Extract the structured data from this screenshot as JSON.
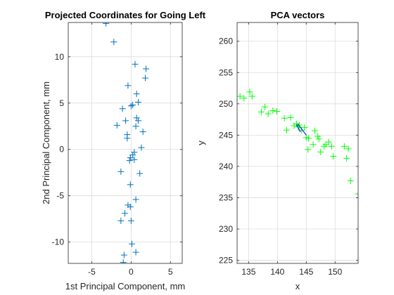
{
  "chart_data": [
    {
      "type": "scatter",
      "title": "Projected Coordinates for Going Left",
      "xlabel": "1st Principal Component, mm",
      "ylabel": "2nd Principal Component, mm",
      "xlim": [
        -8,
        6.5
      ],
      "ylim": [
        -12.3,
        13.7
      ],
      "xticks": [
        -5,
        0,
        5
      ],
      "yticks": [
        -10,
        -5,
        0,
        5,
        10
      ],
      "grid": true,
      "marker": "+",
      "marker_color": "#0072bd",
      "points": [
        [
          -3.2,
          13.6
        ],
        [
          -2.2,
          11.6
        ],
        [
          0.5,
          9.2
        ],
        [
          1.9,
          8.7
        ],
        [
          1.8,
          7.7
        ],
        [
          -0.4,
          6.9
        ],
        [
          0.7,
          6.0
        ],
        [
          0.9,
          5.1
        ],
        [
          0.2,
          4.8
        ],
        [
          0.0,
          4.7
        ],
        [
          -1.1,
          4.4
        ],
        [
          0.7,
          3.4
        ],
        [
          -0.7,
          3.1
        ],
        [
          0.9,
          3.1
        ],
        [
          -1.8,
          2.6
        ],
        [
          0.6,
          2.5
        ],
        [
          1.5,
          1.9
        ],
        [
          -0.5,
          1.6
        ],
        [
          -0.5,
          1.2
        ],
        [
          1.3,
          0.2
        ],
        [
          0.4,
          -0.3
        ],
        [
          0.2,
          -0.6
        ],
        [
          -0.1,
          -0.9
        ],
        [
          0.4,
          -1.1
        ],
        [
          -0.2,
          -1.2
        ],
        [
          1.1,
          -2.6
        ],
        [
          -1.3,
          -2.4
        ],
        [
          -0.1,
          -3.8
        ],
        [
          0.6,
          -5.4
        ],
        [
          -0.4,
          -6.0
        ],
        [
          -0.1,
          -6.2
        ],
        [
          -0.8,
          -6.9
        ],
        [
          -1.3,
          -7.7
        ],
        [
          0.0,
          -7.7
        ],
        [
          0.1,
          -10.2
        ],
        [
          0.6,
          -11.1
        ],
        [
          -0.9,
          -11.4
        ],
        [
          -1.0,
          -12.2
        ]
      ]
    },
    {
      "type": "scatter",
      "title": "PCA vectors",
      "xlabel": "x",
      "ylabel": "y",
      "xlim": [
        133,
        154
      ],
      "ylim": [
        224.5,
        263
      ],
      "xticks": [
        135,
        140,
        145,
        150
      ],
      "yticks": [
        225,
        230,
        235,
        240,
        245,
        250,
        255,
        260
      ],
      "grid": true,
      "marker": "+",
      "marker_color": "#00ff00",
      "vector_color": "#0000ff",
      "points": [
        [
          133.5,
          251.2
        ],
        [
          134.2,
          250.9
        ],
        [
          135.2,
          251.9
        ],
        [
          135.6,
          251.2
        ],
        [
          137.2,
          248.7
        ],
        [
          137.8,
          249.5
        ],
        [
          138.4,
          248.4
        ],
        [
          139.2,
          248.9
        ],
        [
          139.9,
          248.8
        ],
        [
          141.2,
          247.7
        ],
        [
          141.6,
          245.8
        ],
        [
          142.3,
          247.8
        ],
        [
          142.9,
          246.5
        ],
        [
          143.3,
          246.8
        ],
        [
          143.6,
          246.3
        ],
        [
          143.8,
          246.6
        ],
        [
          144.2,
          245.8
        ],
        [
          144.7,
          246.2
        ],
        [
          145.0,
          244.6
        ],
        [
          145.4,
          244.5
        ],
        [
          145.3,
          242.7
        ],
        [
          146.2,
          243.5
        ],
        [
          146.5,
          245.7
        ],
        [
          147.0,
          244.8
        ],
        [
          147.2,
          244.4
        ],
        [
          147.5,
          242.3
        ],
        [
          148.1,
          243.2
        ],
        [
          148.4,
          243.5
        ],
        [
          148.9,
          243.9
        ],
        [
          149.4,
          243.2
        ],
        [
          149.7,
          241.6
        ],
        [
          151.6,
          243.2
        ],
        [
          152.0,
          241.3
        ],
        [
          152.3,
          242.8
        ],
        [
          152.7,
          237.7
        ],
        [
          154.0,
          235.6
        ]
      ],
      "vectors": [
        [
          [
            143.5,
            246.8
          ],
          [
            145.0,
            245.0
          ]
        ],
        [
          [
            144.0,
            245.5
          ],
          [
            143.3,
            246.7
          ]
        ]
      ]
    }
  ]
}
